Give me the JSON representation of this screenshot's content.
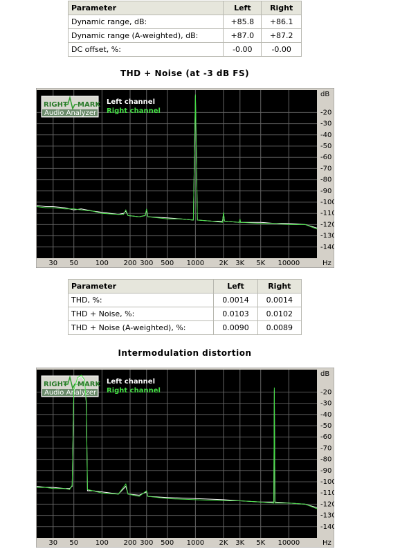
{
  "tables": [
    {
      "header": [
        "Parameter",
        "Left",
        "Right"
      ],
      "rows": [
        [
          "Dynamic range, dB:",
          "+85.8",
          "+86.1"
        ],
        [
          "Dynamic range (A-weighted), dB:",
          "+87.0",
          "+87.2"
        ],
        [
          "DC offset, %:",
          "-0.00",
          "-0.00"
        ]
      ]
    },
    {
      "header": [
        "Parameter",
        "Left",
        "Right"
      ],
      "rows": [
        [
          "THD, %:",
          "0.0014",
          "0.0014"
        ],
        [
          "THD + Noise, %:",
          "0.0103",
          "0.0102"
        ],
        [
          "THD + Noise (A-weighted), %:",
          "0.0090",
          "0.0089"
        ]
      ]
    }
  ],
  "chart_data": [
    {
      "type": "line",
      "title": "THD + Noise (at -3 dB FS)",
      "logo": [
        "RIGHT",
        "MARK",
        "Audio Analyzer"
      ],
      "y_unit": "dB",
      "x_unit": "Hz",
      "xscale": "log",
      "grid": true,
      "xlim": [
        20,
        20000
      ],
      "ylim": [
        -150,
        0
      ],
      "xticks": [
        30,
        50,
        100,
        200,
        300,
        500,
        1000,
        {
          "value": 2000,
          "label": "2K"
        },
        {
          "value": 3000,
          "label": "3K"
        },
        {
          "value": 5000,
          "label": "5K"
        },
        10000
      ],
      "yticks": [
        -20,
        -30,
        -40,
        -50,
        -60,
        -70,
        -80,
        -90,
        -100,
        -110,
        -120,
        -130,
        -140
      ],
      "x": [
        20,
        25,
        30,
        40,
        50,
        60,
        80,
        100,
        150,
        170,
        180,
        190,
        250,
        290,
        300,
        310,
        500,
        700,
        950,
        1000,
        1050,
        1500,
        1950,
        2000,
        2050,
        2950,
        3000,
        3050,
        5000,
        7000,
        10000,
        15000,
        20000
      ],
      "series": [
        {
          "name": "Left channel",
          "color": "#ffffff",
          "values": [
            -103,
            -104,
            -104,
            -105,
            -107,
            -106,
            -108,
            -109,
            -111,
            -110,
            -108,
            -112,
            -113,
            -112,
            -107,
            -113,
            -114,
            -115,
            -116,
            -5,
            -116,
            -117,
            -117,
            -110,
            -117,
            -118,
            -116,
            -118,
            -118,
            -119,
            -119,
            -120,
            -123
          ]
        },
        {
          "name": "Right channel",
          "color": "#44dd44",
          "values": [
            -104,
            -105,
            -105,
            -106,
            -106,
            -107,
            -108,
            -110,
            -111,
            -111,
            -107,
            -112,
            -113,
            -112,
            -106,
            -113,
            -115,
            -115,
            -116,
            -4,
            -116,
            -117,
            -118,
            -109,
            -117,
            -118,
            -115,
            -118,
            -119,
            -119,
            -120,
            -120,
            -124
          ]
        }
      ]
    },
    {
      "type": "line",
      "title": "Intermodulation distortion",
      "logo": [
        "RIGHT",
        "MARK",
        "Audio Analyzer"
      ],
      "y_unit": "dB",
      "x_unit": "Hz",
      "xscale": "log",
      "grid": true,
      "xlim": [
        20,
        20000
      ],
      "ylim": [
        -150,
        0
      ],
      "xticks": [
        30,
        50,
        100,
        200,
        300,
        500,
        1000,
        {
          "value": 2000,
          "label": "2K"
        },
        {
          "value": 3000,
          "label": "3K"
        },
        {
          "value": 5000,
          "label": "5K"
        },
        10000
      ],
      "yticks": [
        -20,
        -30,
        -40,
        -50,
        -60,
        -70,
        -80,
        -90,
        -100,
        -110,
        -120,
        -130,
        -140
      ],
      "x": [
        20,
        25,
        30,
        40,
        45,
        48,
        50,
        55,
        60,
        65,
        68,
        70,
        80,
        100,
        150,
        180,
        190,
        250,
        300,
        310,
        500,
        1000,
        2000,
        3000,
        5000,
        6900,
        7000,
        7100,
        10000,
        15000,
        20000
      ],
      "series": [
        {
          "name": "Left channel",
          "color": "#ffffff",
          "values": [
            -104,
            -105,
            -105,
            -106,
            -106,
            -104,
            -20,
            -8,
            -6,
            -10,
            -30,
            -108,
            -108,
            -109,
            -111,
            -104,
            -111,
            -112,
            -109,
            -113,
            -114,
            -115,
            -116,
            -117,
            -118,
            -118,
            -18,
            -118,
            -119,
            -120,
            -123
          ]
        },
        {
          "name": "Right channel",
          "color": "#44dd44",
          "values": [
            -105,
            -105,
            -106,
            -106,
            -107,
            -103,
            -18,
            -7,
            -5,
            -9,
            -28,
            -107,
            -108,
            -110,
            -111,
            -102,
            -111,
            -113,
            -108,
            -113,
            -115,
            -116,
            -117,
            -117,
            -118,
            -119,
            -16,
            -119,
            -119,
            -120,
            -124
          ]
        }
      ]
    }
  ]
}
